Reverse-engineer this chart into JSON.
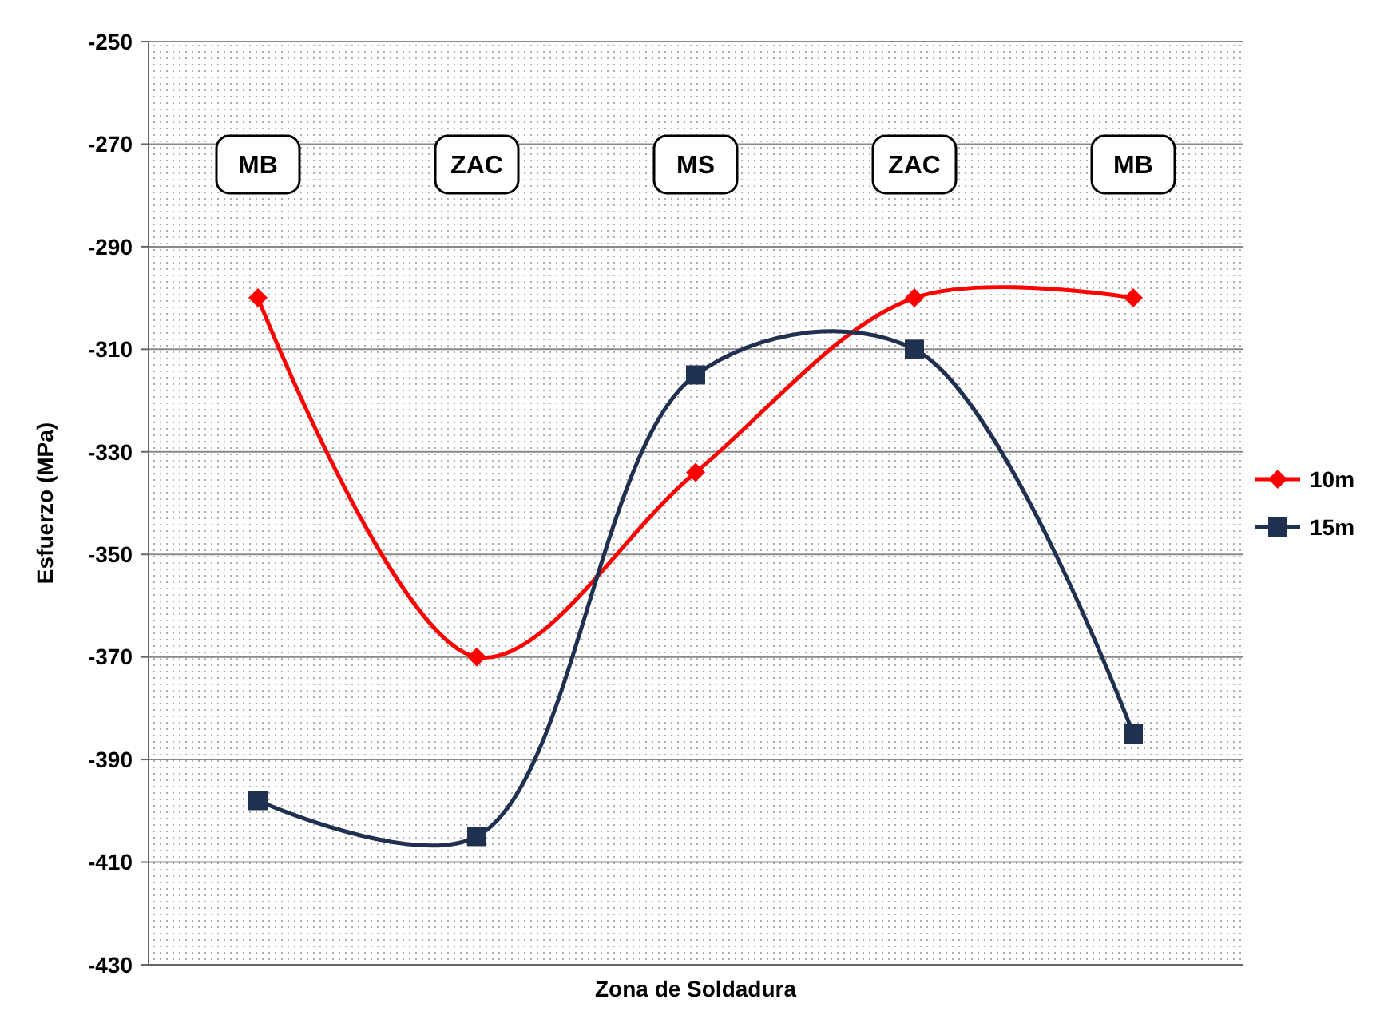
{
  "chart_data": {
    "type": "line",
    "xlabel": "Zona de Soldadura",
    "ylabel": "Esfuerzo (MPa)",
    "categories": [
      "MB",
      "ZAC",
      "MS",
      "ZAC",
      "MB"
    ],
    "series": [
      {
        "name": "10m",
        "color": "#ff0000",
        "marker": "diamond",
        "values": [
          -300,
          -370,
          -334,
          -300,
          -300
        ]
      },
      {
        "name": "15m",
        "color": "#1f3050",
        "marker": "square",
        "values": [
          -398,
          -405,
          -315,
          -310,
          -385
        ]
      }
    ],
    "ylim": [
      -430,
      -250
    ],
    "yticks": [
      -430,
      -410,
      -390,
      -370,
      -350,
      -330,
      -310,
      -290,
      -270,
      -250
    ],
    "grid": "y",
    "legend": "right"
  }
}
